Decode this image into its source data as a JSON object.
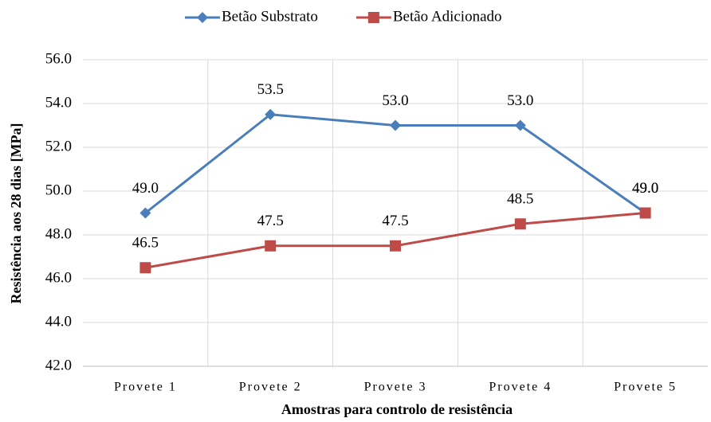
{
  "chart_data": {
    "type": "line",
    "y_label": "Resistência aos 28 dias [MPa]",
    "x_label": "Amostras para controlo de resistência",
    "categories": [
      "Provete 1",
      "Provete 2",
      "Provete 3",
      "Provete 4",
      "Provete 5"
    ],
    "series": [
      {
        "name": "Betão Substrato",
        "color": "#4a7ebb",
        "marker": "diamond",
        "values": [
          49.0,
          53.5,
          53.0,
          53.0,
          49.0
        ],
        "value_labels": [
          "49.0",
          "53.5",
          "53.0",
          "53.0",
          "49.0"
        ]
      },
      {
        "name": "Betão Adicionado",
        "color": "#be4b48",
        "marker": "square",
        "values": [
          46.5,
          47.5,
          47.5,
          48.5,
          49.0
        ],
        "value_labels": [
          "46.5",
          "47.5",
          "47.5",
          "48.5",
          "49.0"
        ]
      }
    ],
    "ylim": [
      42,
      56
    ],
    "yticks": [
      {
        "value": 42,
        "label": "42.0"
      },
      {
        "value": 44,
        "label": "44.0"
      },
      {
        "value": 46,
        "label": "46.0"
      },
      {
        "value": 48,
        "label": "48.0"
      },
      {
        "value": 50,
        "label": "50.0"
      },
      {
        "value": 52,
        "label": "52.0"
      },
      {
        "value": 54,
        "label": "54.0"
      },
      {
        "value": 56,
        "label": "56.0"
      }
    ],
    "grid": true,
    "legend": "top"
  }
}
